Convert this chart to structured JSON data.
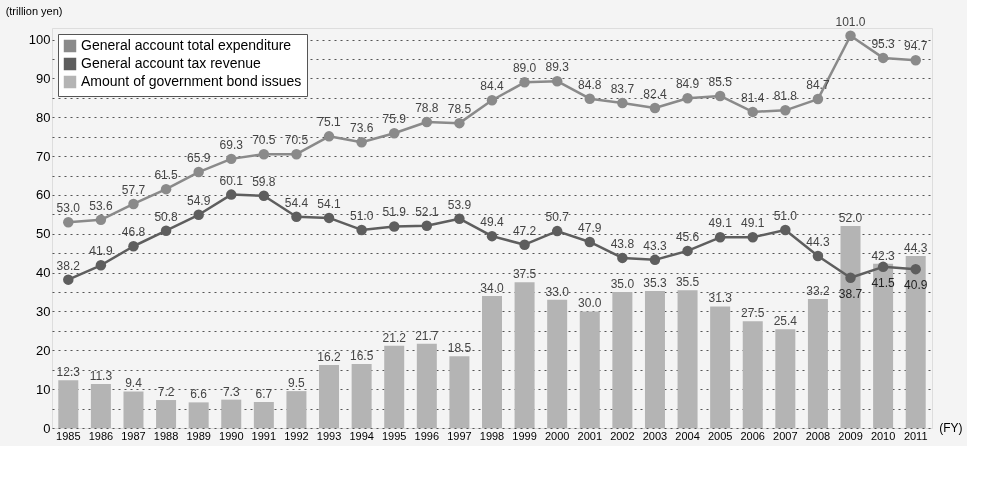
{
  "chart_data": {
    "type": "bar",
    "xlabel": "(FY)",
    "ylabel": "(trillion yen)",
    "categories": [
      "1985",
      "1986",
      "1987",
      "1988",
      "1989",
      "1990",
      "1991",
      "1992",
      "1993",
      "1994",
      "1995",
      "1996",
      "1997",
      "1998",
      "1999",
      "2000",
      "2001",
      "2002",
      "2003",
      "2004",
      "2005",
      "2006",
      "2007",
      "2008",
      "2009",
      "2010",
      "2011"
    ],
    "series": [
      {
        "name": "General account total expenditure",
        "type": "line",
        "color": "#8a8a8a",
        "values": [
          53.0,
          53.6,
          57.7,
          61.5,
          65.9,
          69.3,
          70.5,
          70.5,
          75.1,
          73.6,
          75.9,
          78.8,
          78.5,
          84.4,
          89.0,
          89.3,
          84.8,
          83.7,
          82.4,
          84.9,
          85.5,
          81.4,
          81.8,
          84.7,
          101.0,
          95.3,
          94.7
        ],
        "value_labels": [
          "53.0",
          "53.6",
          "57.7",
          "61.5",
          "65.9",
          "69.3",
          "70.5",
          "70.5",
          "75.1",
          "73.6",
          "75.9",
          "78.8",
          "78.5",
          "84.4",
          "89.0",
          "89.3",
          "84.8",
          "83.7",
          "82.4",
          "84.9",
          "85.5",
          "81.4",
          "81.8",
          "84.7",
          "101.0",
          "95.3",
          "94.7"
        ]
      },
      {
        "name": "General account tax revenue",
        "type": "line",
        "color": "#5e5e5e",
        "values": [
          38.2,
          41.9,
          46.8,
          50.8,
          54.9,
          60.1,
          59.8,
          54.4,
          54.1,
          51.0,
          51.9,
          52.1,
          53.9,
          49.4,
          47.2,
          50.7,
          47.9,
          43.8,
          43.3,
          45.6,
          49.1,
          49.1,
          51.0,
          44.3,
          38.7,
          41.5,
          40.9
        ],
        "value_labels": [
          "38.2",
          "41.9",
          "46.8",
          "50.8",
          "54.9",
          "60.1",
          "59.8",
          "54.4",
          "54.1",
          "51.0",
          "51.9",
          "52.1",
          "53.9",
          "49.4",
          "47.2",
          "50.7",
          "47.9",
          "43.8",
          "43.3",
          "45.6",
          "49.1",
          "49.1",
          "51.0",
          "44.3",
          "38.7",
          "41.5",
          "40.9"
        ]
      },
      {
        "name": "Amount of government bond issues",
        "color": "#b4b4b4",
        "values": [
          12.3,
          11.3,
          9.4,
          7.2,
          6.6,
          7.3,
          6.7,
          9.5,
          16.2,
          16.5,
          21.2,
          21.7,
          18.5,
          34.0,
          37.5,
          33.0,
          30.0,
          35.0,
          35.3,
          35.5,
          31.3,
          27.5,
          25.4,
          33.2,
          52.0,
          42.3,
          44.3
        ],
        "value_labels": [
          "12.3",
          "11.3",
          "9.4",
          "7.2",
          "6.6",
          "7.3",
          "6.7",
          "9.5",
          "16.2",
          "16.5",
          "21.2",
          "21.7",
          "18.5",
          "34.0",
          "37.5",
          "33.0",
          "30.0",
          "35.0",
          "35.3",
          "35.5",
          "31.3",
          "27.5",
          "25.4",
          "33.2",
          "52.0",
          "42.3",
          "44.3"
        ]
      }
    ],
    "ylim": [
      0,
      103
    ],
    "yticks": [
      0,
      {
        "value": 5,
        "label": null
      },
      10,
      {
        "value": 15,
        "label": null
      },
      20,
      {
        "value": 25,
        "label": null
      },
      30,
      {
        "value": 35,
        "label": null
      },
      40,
      {
        "value": 45,
        "label": null
      },
      50,
      {
        "value": 55,
        "label": null
      },
      60,
      {
        "value": 65,
        "label": null
      },
      70,
      {
        "value": 75,
        "label": null
      },
      80,
      {
        "value": 85,
        "label": null
      },
      90,
      {
        "value": 95,
        "label": null
      },
      100
    ],
    "grid": "y",
    "legend": "top left",
    "marker": "circle",
    "line_style": "solid"
  }
}
